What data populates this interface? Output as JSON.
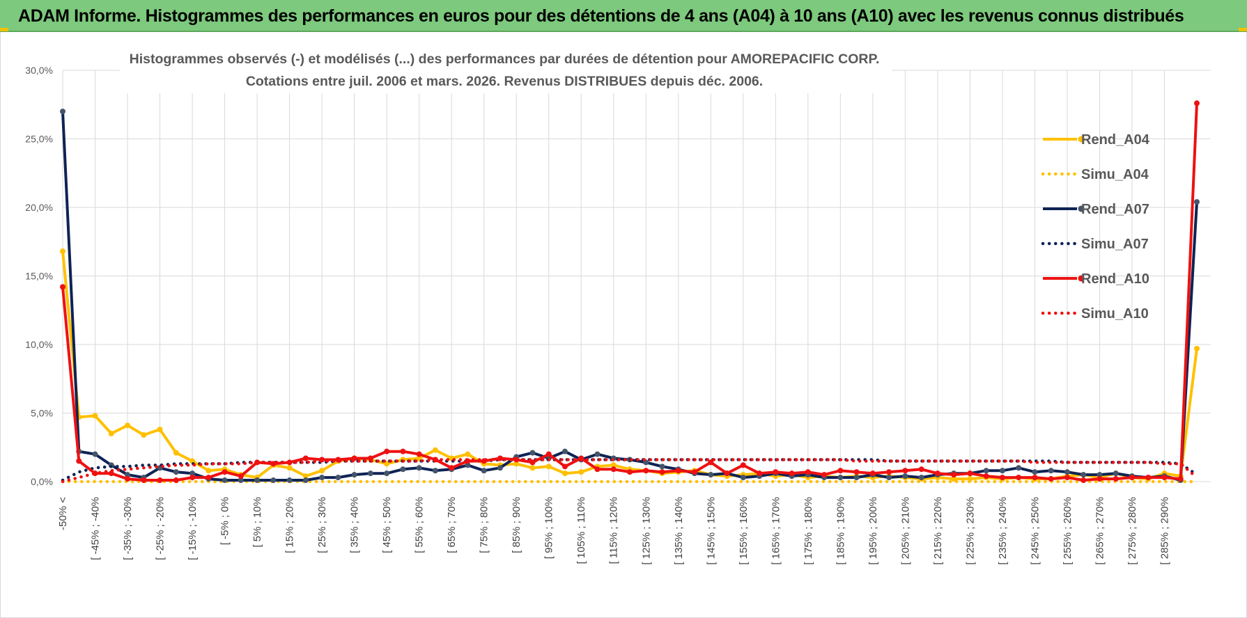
{
  "header": {
    "title": "ADAM Informe. Histogrammes des performances en euros pour des détentions de 4 ans (A04) à 10 ans (A10) avec les revenus connus distribués"
  },
  "colors": {
    "a04": "#ffc000",
    "a07": "#0e2355",
    "a10": "#ee1111",
    "grid": "#d9d9d9",
    "banner": "#7dc97d"
  },
  "chart_data": {
    "type": "line",
    "title": "Histogrammes observés (-) et modélisés (...) des performances par durées de détention pour AMOREPACIFIC CORP.",
    "subtitle": "Cotations entre juil. 2006 et mars. 2026.  Revenus DISTRIBUES depuis déc. 2006.",
    "ylim": [
      0,
      30
    ],
    "yticks": [
      "0,0%",
      "5,0%",
      "10,0%",
      "15,0%",
      "20,0%",
      "25,0%",
      "30,0%"
    ],
    "x_tick_labels": [
      "-50% <",
      "[ -45% ; -40%",
      "[ -35% ; -30%",
      "[ -25% ; -20%",
      "[ -15% ; -10%",
      "[ -5% ; 0%",
      "[ 5% ; 10%",
      "[ 15% ; 20%",
      "[ 25% ; 30%",
      "[ 35% ; 40%",
      "[ 45% ; 50%",
      "[ 55% ; 60%",
      "[ 65% ; 70%",
      "[ 75% ; 80%",
      "[ 85% ; 90%",
      "[ 95% ; 100%",
      "[ 105% ; 110%",
      "[ 115% ; 120%",
      "[ 125% ; 130%",
      "[ 135% ; 140%",
      "[ 145% ; 150%",
      "[ 155% ; 160%",
      "[ 165% ; 170%",
      "[ 175% ; 180%",
      "[ 185% ; 190%",
      "[ 195% ; 200%",
      "[ 205% ; 210%",
      "[ 215% ; 220%",
      "[ 225% ; 230%",
      "[ 235% ; 240%",
      "[ 245% ; 250%",
      "[ 255% ; 260%",
      "[ 265% ; 270%",
      "[ 275% ; 280%",
      "[ 285% ; 290%"
    ],
    "n_categories": 71,
    "series": [
      {
        "name": "Rend_A04",
        "style": "solid",
        "color": "#ffc000",
        "values": [
          16.8,
          4.7,
          4.8,
          3.5,
          4.1,
          3.4,
          3.8,
          2.1,
          1.5,
          0.8,
          0.9,
          0.5,
          0.3,
          1.2,
          1.0,
          0.4,
          0.8,
          1.5,
          1.7,
          1.6,
          1.3,
          1.6,
          1.7,
          2.3,
          1.7,
          2.0,
          1.3,
          1.2,
          1.3,
          1.0,
          1.1,
          0.6,
          0.7,
          1.1,
          1.2,
          0.9,
          0.8,
          0.6,
          0.7,
          0.8,
          0.5,
          0.4,
          0.5,
          0.6,
          0.4,
          0.5,
          0.3,
          0.4,
          0.3,
          0.4,
          0.3,
          0.4,
          0.3,
          0.2,
          0.3,
          0.2,
          0.2,
          0.3,
          0.2,
          0.3,
          0.2,
          0.2,
          0.4,
          0.5,
          0.3,
          0.6,
          0.3,
          0.2,
          0.6,
          0.4,
          9.7
        ]
      },
      {
        "name": "Simu_A04",
        "style": "dotted",
        "color": "#ffc000",
        "values": [
          0.0,
          0.0,
          0.0,
          0.0,
          0.0,
          0.0,
          0.0,
          0.0,
          0.0,
          0.0,
          0.0,
          0.0,
          0.0,
          0.0,
          0.0,
          0.0,
          0.0,
          0.0,
          0.0,
          0.0,
          0.0,
          0.0,
          0.0,
          0.0,
          0.0,
          0.0,
          0.0,
          0.0,
          0.0,
          0.0,
          0.0,
          0.0,
          0.0,
          0.0,
          0.0,
          0.0,
          0.0,
          0.0,
          0.0,
          0.0,
          0.0,
          0.0,
          0.0,
          0.0,
          0.0,
          0.0,
          0.0,
          0.0,
          0.0,
          0.0,
          0.0,
          0.0,
          0.0,
          0.0,
          0.0,
          0.0,
          0.0,
          0.0,
          0.0,
          0.0,
          0.0,
          0.0,
          0.0,
          0.0,
          0.0,
          0.0,
          0.0,
          0.0,
          0.0,
          0.0,
          0.0
        ]
      },
      {
        "name": "Rend_A07",
        "style": "solid",
        "color": "#0e2355",
        "values": [
          27.0,
          2.2,
          2.0,
          1.2,
          0.5,
          0.3,
          1.0,
          0.7,
          0.6,
          0.2,
          0.1,
          0.1,
          0.1,
          0.1,
          0.1,
          0.1,
          0.3,
          0.3,
          0.5,
          0.6,
          0.6,
          0.9,
          1.0,
          0.8,
          0.9,
          1.2,
          0.8,
          1.0,
          1.8,
          2.1,
          1.7,
          2.2,
          1.6,
          2.0,
          1.7,
          1.6,
          1.4,
          1.1,
          0.9,
          0.6,
          0.5,
          0.6,
          0.3,
          0.4,
          0.6,
          0.4,
          0.5,
          0.3,
          0.3,
          0.3,
          0.5,
          0.3,
          0.4,
          0.3,
          0.5,
          0.6,
          0.6,
          0.8,
          0.8,
          1.0,
          0.7,
          0.8,
          0.7,
          0.5,
          0.5,
          0.6,
          0.4,
          0.3,
          0.4,
          0.1,
          20.4
        ]
      },
      {
        "name": "Simu_A07",
        "style": "dotted",
        "color": "#0e2355",
        "values": [
          0.1,
          0.7,
          1.0,
          1.1,
          1.1,
          1.2,
          1.2,
          1.3,
          1.3,
          1.3,
          1.3,
          1.4,
          1.4,
          1.4,
          1.4,
          1.4,
          1.4,
          1.5,
          1.5,
          1.5,
          1.5,
          1.5,
          1.5,
          1.5,
          1.5,
          1.5,
          1.5,
          1.6,
          1.6,
          1.6,
          1.6,
          1.6,
          1.6,
          1.6,
          1.6,
          1.6,
          1.6,
          1.6,
          1.6,
          1.6,
          1.6,
          1.6,
          1.6,
          1.6,
          1.6,
          1.6,
          1.6,
          1.6,
          1.6,
          1.6,
          1.6,
          1.5,
          1.5,
          1.5,
          1.5,
          1.5,
          1.5,
          1.5,
          1.5,
          1.5,
          1.5,
          1.5,
          1.4,
          1.4,
          1.4,
          1.4,
          1.4,
          1.4,
          1.4,
          1.3,
          0.5
        ]
      },
      {
        "name": "Rend_A10",
        "style": "solid",
        "color": "#ee1111",
        "values": [
          14.2,
          1.5,
          0.6,
          0.6,
          0.2,
          0.1,
          0.1,
          0.1,
          0.3,
          0.3,
          0.7,
          0.4,
          1.4,
          1.3,
          1.4,
          1.7,
          1.6,
          1.6,
          1.7,
          1.7,
          2.2,
          2.2,
          2.0,
          1.6,
          1.0,
          1.5,
          1.5,
          1.7,
          1.6,
          1.4,
          2.0,
          1.1,
          1.7,
          0.9,
          0.9,
          0.7,
          0.8,
          0.7,
          0.8,
          0.7,
          1.4,
          0.6,
          1.2,
          0.6,
          0.7,
          0.6,
          0.7,
          0.5,
          0.8,
          0.7,
          0.6,
          0.7,
          0.8,
          0.9,
          0.6,
          0.5,
          0.6,
          0.4,
          0.3,
          0.3,
          0.3,
          0.2,
          0.3,
          0.1,
          0.2,
          0.2,
          0.3,
          0.3,
          0.3,
          0.2,
          27.6
        ]
      },
      {
        "name": "Simu_A10",
        "style": "dotted",
        "color": "#ee1111",
        "values": [
          0.0,
          0.3,
          0.6,
          0.8,
          0.9,
          1.0,
          1.1,
          1.2,
          1.2,
          1.3,
          1.3,
          1.3,
          1.4,
          1.4,
          1.4,
          1.4,
          1.5,
          1.5,
          1.5,
          1.5,
          1.5,
          1.5,
          1.5,
          1.6,
          1.6,
          1.6,
          1.6,
          1.6,
          1.6,
          1.6,
          1.6,
          1.6,
          1.6,
          1.6,
          1.6,
          1.6,
          1.6,
          1.6,
          1.6,
          1.6,
          1.6,
          1.6,
          1.6,
          1.6,
          1.6,
          1.6,
          1.6,
          1.6,
          1.6,
          1.5,
          1.5,
          1.5,
          1.5,
          1.5,
          1.5,
          1.5,
          1.5,
          1.5,
          1.5,
          1.5,
          1.4,
          1.4,
          1.4,
          1.4,
          1.4,
          1.4,
          1.4,
          1.4,
          1.3,
          1.3,
          0.3
        ]
      }
    ],
    "legend_position": "right"
  }
}
